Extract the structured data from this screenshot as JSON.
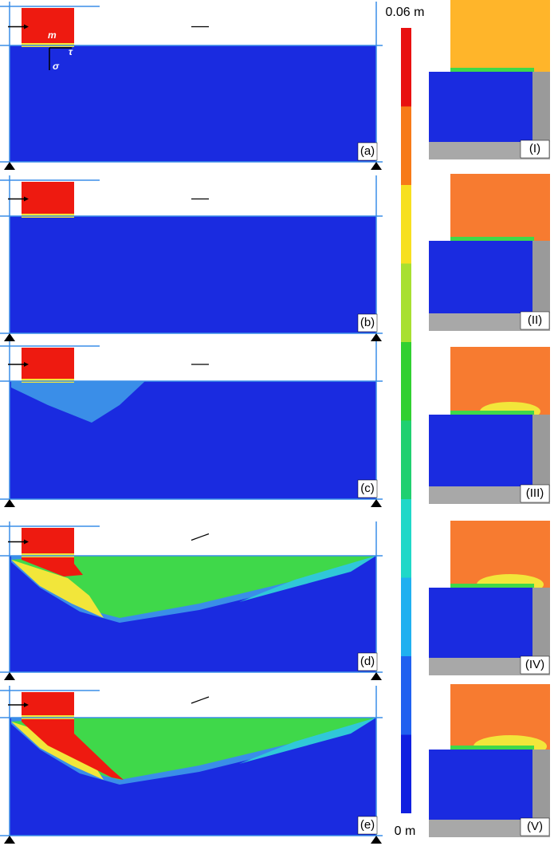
{
  "panels": [
    {
      "label": "(a)"
    },
    {
      "label": "(b)"
    },
    {
      "label": "(c)"
    },
    {
      "label": "(d)"
    },
    {
      "label": "(e)"
    }
  ],
  "insets": [
    {
      "label": "(I)"
    },
    {
      "label": "(II)"
    },
    {
      "label": "(III)"
    },
    {
      "label": "(IV)"
    },
    {
      "label": "(V)"
    }
  ],
  "colorbar": {
    "max_label": "0.06 m",
    "min_label": "0 m"
  },
  "symbols": {
    "m": "m",
    "tau": "τ",
    "sigma": "σ"
  }
}
